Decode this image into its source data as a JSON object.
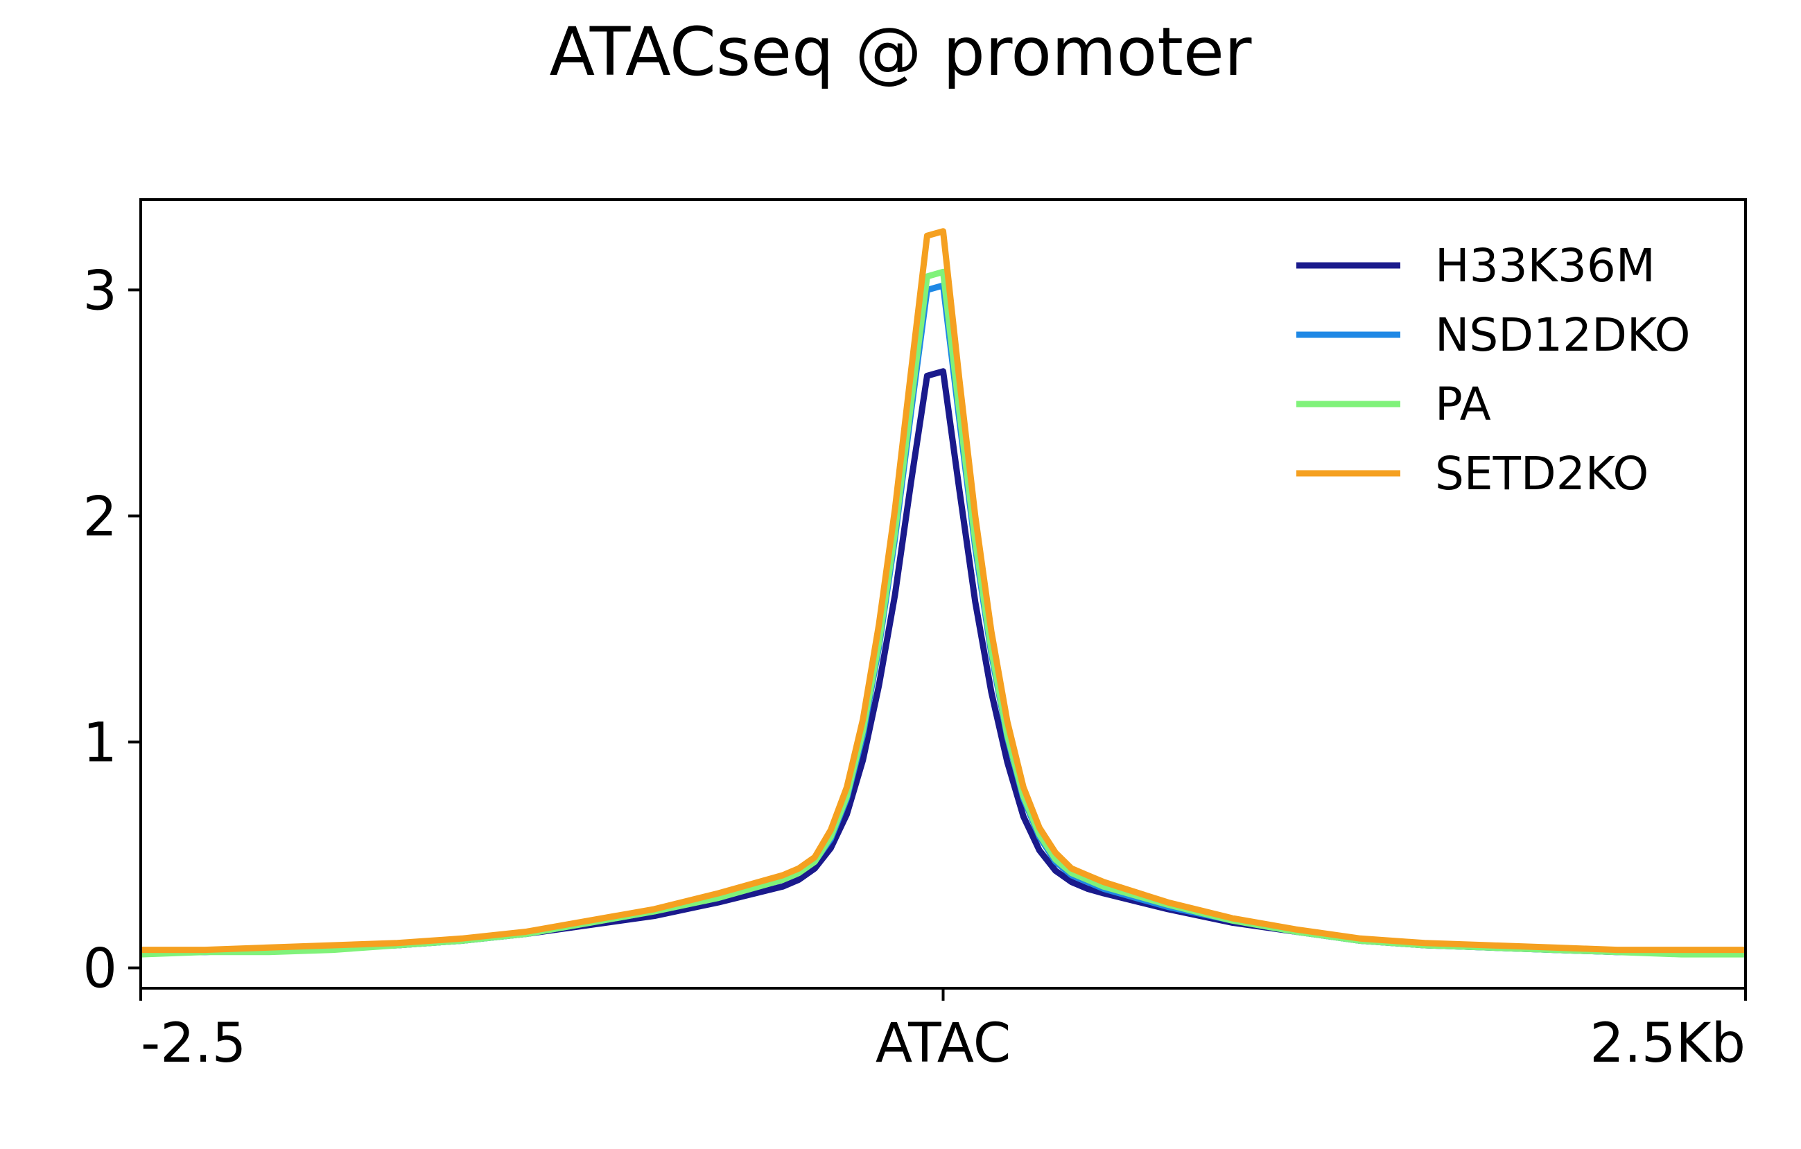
{
  "chart_data": {
    "type": "line",
    "title": "ATACseq @ promoter",
    "xlabel": "",
    "ylabel": "",
    "x_tick_labels": [
      "-2.5",
      "ATAC",
      "2.5Kb"
    ],
    "x_tick_values": [
      -2.5,
      0,
      2.5
    ],
    "xlim": [
      -2.5,
      2.5
    ],
    "y_ticks": [
      0,
      1,
      2,
      3
    ],
    "ylim": [
      -0.09,
      3.4
    ],
    "grid": false,
    "legend_position": "top-right",
    "x": [
      -2.5,
      -2.3,
      -2.1,
      -1.9,
      -1.7,
      -1.5,
      -1.3,
      -1.1,
      -0.9,
      -0.7,
      -0.5,
      -0.45,
      -0.4,
      -0.35,
      -0.3,
      -0.25,
      -0.2,
      -0.15,
      -0.1,
      -0.05,
      0,
      0.05,
      0.1,
      0.15,
      0.2,
      0.25,
      0.3,
      0.35,
      0.4,
      0.45,
      0.5,
      0.7,
      0.9,
      1.1,
      1.3,
      1.5,
      1.7,
      1.9,
      2.1,
      2.3,
      2.5
    ],
    "series": [
      {
        "name": "H33K36M",
        "color": "#1a1a8c",
        "values": [
          0.07,
          0.07,
          0.08,
          0.09,
          0.1,
          0.12,
          0.15,
          0.19,
          0.23,
          0.29,
          0.36,
          0.39,
          0.44,
          0.53,
          0.68,
          0.92,
          1.25,
          1.65,
          2.15,
          2.62,
          2.64,
          2.12,
          1.62,
          1.22,
          0.91,
          0.67,
          0.52,
          0.43,
          0.38,
          0.35,
          0.33,
          0.26,
          0.2,
          0.16,
          0.12,
          0.1,
          0.09,
          0.08,
          0.07,
          0.07,
          0.07
        ]
      },
      {
        "name": "NSD12DKO",
        "color": "#1e88e5",
        "values": [
          0.07,
          0.07,
          0.08,
          0.09,
          0.1,
          0.12,
          0.15,
          0.2,
          0.25,
          0.31,
          0.39,
          0.42,
          0.47,
          0.57,
          0.75,
          1.03,
          1.42,
          1.9,
          2.46,
          3.0,
          3.02,
          2.43,
          1.86,
          1.39,
          1.02,
          0.75,
          0.58,
          0.47,
          0.41,
          0.38,
          0.35,
          0.27,
          0.21,
          0.16,
          0.12,
          0.1,
          0.09,
          0.08,
          0.07,
          0.07,
          0.07
        ]
      },
      {
        "name": "PA",
        "color": "#80f27a",
        "values": [
          0.06,
          0.07,
          0.07,
          0.08,
          0.1,
          0.12,
          0.15,
          0.2,
          0.25,
          0.31,
          0.39,
          0.42,
          0.47,
          0.58,
          0.76,
          1.05,
          1.44,
          1.93,
          2.5,
          3.06,
          3.08,
          2.47,
          1.89,
          1.41,
          1.03,
          0.76,
          0.59,
          0.48,
          0.42,
          0.39,
          0.36,
          0.28,
          0.21,
          0.16,
          0.12,
          0.1,
          0.09,
          0.08,
          0.07,
          0.06,
          0.06
        ]
      },
      {
        "name": "SETD2KO",
        "color": "#f5a020",
        "values": [
          0.08,
          0.08,
          0.09,
          0.1,
          0.11,
          0.13,
          0.16,
          0.21,
          0.26,
          0.33,
          0.41,
          0.44,
          0.49,
          0.61,
          0.8,
          1.1,
          1.52,
          2.03,
          2.64,
          3.24,
          3.26,
          2.61,
          2.0,
          1.49,
          1.09,
          0.8,
          0.62,
          0.51,
          0.44,
          0.41,
          0.38,
          0.29,
          0.22,
          0.17,
          0.13,
          0.11,
          0.1,
          0.09,
          0.08,
          0.08,
          0.08
        ]
      }
    ]
  }
}
